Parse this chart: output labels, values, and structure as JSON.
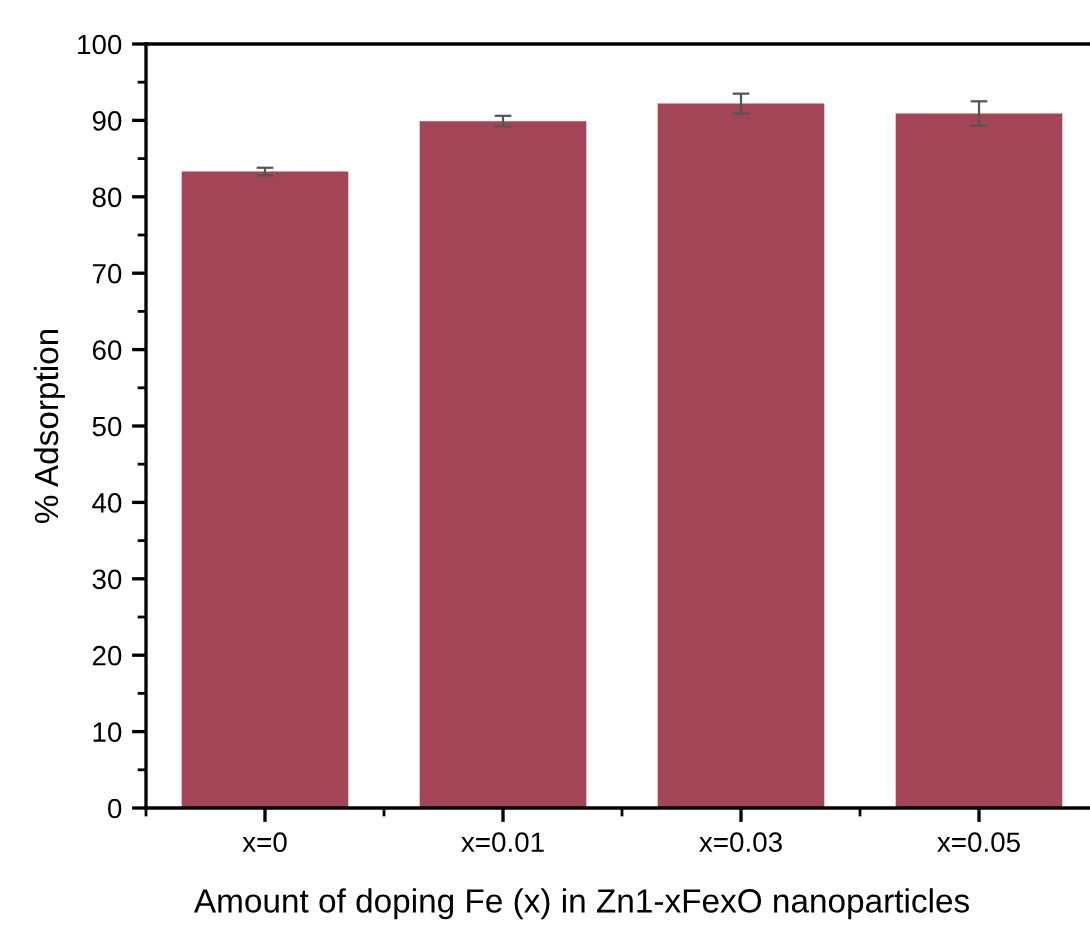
{
  "chart_data": {
    "type": "bar",
    "xlabel": "Amount of doping Fe (x) in Zn1-xFexO nanoparticles",
    "ylabel": "% Adsorption",
    "categories": [
      "x=0",
      "x=0.01",
      "x=0.03",
      "x=0.05"
    ],
    "values": [
      83.3,
      89.9,
      92.2,
      90.9
    ],
    "errors": [
      0.5,
      0.7,
      1.3,
      1.6
    ],
    "color": "#a34457",
    "ylim": [
      0,
      100
    ],
    "yticks": [
      0,
      10,
      20,
      30,
      40,
      50,
      60,
      70,
      80,
      90,
      100
    ],
    "grid": false
  }
}
